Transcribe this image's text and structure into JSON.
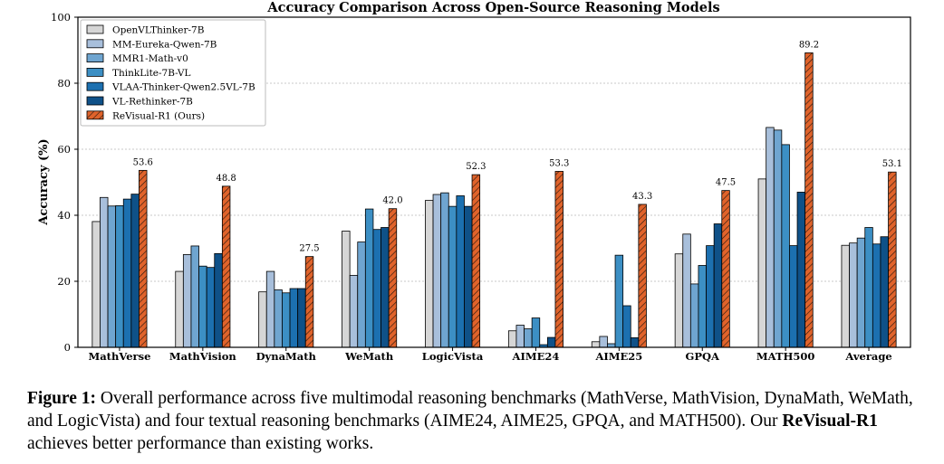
{
  "chart_data": {
    "type": "bar",
    "title": "Accuracy Comparison Across Open-Source Reasoning Models",
    "ylabel": "Accuracy (%)",
    "xlabel": "",
    "ylim": [
      0,
      100
    ],
    "yticks": [
      0,
      20,
      40,
      60,
      80,
      100
    ],
    "grid": "horizontal dotted",
    "legend_position": "top-left",
    "categories": [
      "MathVerse",
      "MathVision",
      "DynaMath",
      "WeMath",
      "LogicVista",
      "AIME24",
      "AIME25",
      "GPQA",
      "MATH500",
      "Average"
    ],
    "series": [
      {
        "name": "OpenVLThinker-7B",
        "color": "#d6d6d6",
        "values": [
          38.1,
          23.0,
          16.8,
          35.2,
          44.5,
          5.0,
          1.7,
          28.3,
          51.0,
          30.9
        ]
      },
      {
        "name": "MM-Eureka-Qwen-7B",
        "color": "#a8bfdb",
        "values": [
          45.4,
          28.1,
          23.0,
          21.8,
          46.3,
          6.7,
          3.3,
          34.3,
          66.6,
          31.6
        ]
      },
      {
        "name": "MMR1-Math-v0",
        "color": "#6fa5d0",
        "values": [
          42.8,
          30.7,
          17.4,
          31.9,
          46.8,
          5.6,
          1.1,
          19.2,
          65.8,
          33.1
        ]
      },
      {
        "name": "ThinkLite-7B-VL",
        "color": "#3c8fc4",
        "values": [
          42.9,
          24.6,
          16.5,
          41.9,
          42.7,
          8.9,
          27.9,
          24.8,
          61.4,
          36.3
        ]
      },
      {
        "name": "VLAA-Thinker-Qwen2.5VL-7B",
        "color": "#1c70b0",
        "values": [
          44.9,
          24.2,
          17.8,
          35.7,
          45.9,
          0.8,
          12.6,
          30.8,
          30.8,
          31.3
        ]
      },
      {
        "name": "VL-Rethinker-7B",
        "color": "#0f5188",
        "values": [
          46.4,
          28.4,
          17.8,
          36.3,
          42.7,
          3.0,
          2.9,
          37.4,
          47.0,
          33.5
        ]
      },
      {
        "name": "ReVisual-R1 (Ours)",
        "color": "#e0632b",
        "hatch": true,
        "values": [
          53.6,
          48.8,
          27.5,
          42.0,
          52.3,
          53.3,
          43.3,
          47.5,
          89.2,
          53.1
        ]
      }
    ],
    "data_labels_series": "ReVisual-R1 (Ours)",
    "data_labels": [
      "53.6",
      "48.8",
      "27.5",
      "42.0",
      "52.3",
      "53.3",
      "43.3",
      "47.5",
      "89.2",
      "53.1"
    ]
  },
  "caption": {
    "label": "Figure 1:",
    "text_before": " Overall performance across five multimodal reasoning benchmarks (MathVerse, MathVision, DynaMath, WeMath, and LogicVista) and four textual reasoning benchmarks (AIME24, AIME25, GPQA, and MATH500). Our ",
    "model": "ReVisual-R1",
    "text_after": " achieves better performance than existing works."
  }
}
